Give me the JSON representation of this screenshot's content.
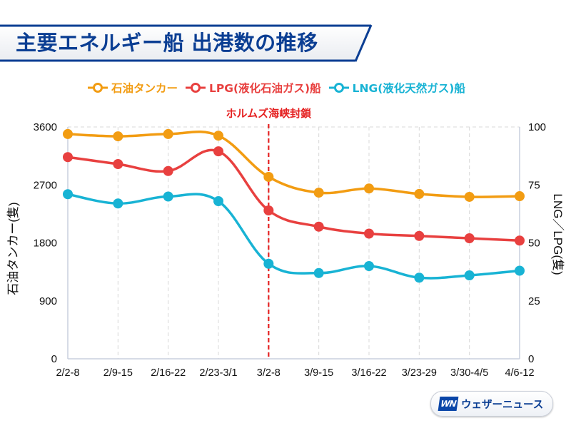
{
  "title": "主要エネルギー船 出港数の推移",
  "colors": {
    "oil": "#f29c12",
    "lpg": "#e8403f",
    "lng": "#18b3d4",
    "brand": "#0b3e93",
    "annotation": "#e52222",
    "grid": "#d8d8d8",
    "axis": "#c9cfde"
  },
  "legend": [
    {
      "key": "oil",
      "label": "石油タンカー"
    },
    {
      "key": "lpg",
      "label": "LPG(液化石油ガス)船"
    },
    {
      "key": "lng",
      "label": "LNG(液化天然ガス)船"
    }
  ],
  "logo": {
    "mark": "WN",
    "text": "ウェザーニュース"
  },
  "chart_data": {
    "type": "line",
    "title": "主要エネルギー船 出港数の推移",
    "categories": [
      "2/2-8",
      "2/9-15",
      "2/16-22",
      "2/23-3/1",
      "3/2-8",
      "3/9-15",
      "3/16-22",
      "3/23-29",
      "3/30-4/5",
      "4/6-12"
    ],
    "left_axis": {
      "label": "石油タンカー(隻)",
      "range": [
        0,
        3600
      ],
      "ticks": [
        0,
        900,
        1800,
        2700,
        3600
      ]
    },
    "right_axis": {
      "label": "LNG／LPG(隻)",
      "range": [
        0,
        100
      ],
      "ticks": [
        0,
        25,
        50,
        75,
        100
      ]
    },
    "series": [
      {
        "key": "oil",
        "name": "石油タンカー",
        "axis": "left",
        "values": [
          3490,
          3455,
          3490,
          3465,
          2825,
          2580,
          2645,
          2560,
          2515,
          2525
        ]
      },
      {
        "key": "lpg",
        "name": "LPG(液化石油ガス)船",
        "axis": "right",
        "values": [
          87,
          84,
          81,
          89.5,
          64,
          57,
          54,
          53,
          52,
          51
        ]
      },
      {
        "key": "lng",
        "name": "LNG(液化天然ガス)船",
        "axis": "right",
        "values": [
          71,
          67,
          70,
          68,
          41,
          37,
          40,
          35,
          36,
          38
        ]
      }
    ],
    "annotations": [
      {
        "type": "vline",
        "at_category": "3/2-8",
        "label": "ホルムズ海峡封鎖"
      }
    ],
    "grid": "vertical dashed + top dashed",
    "legend_position": "top"
  }
}
